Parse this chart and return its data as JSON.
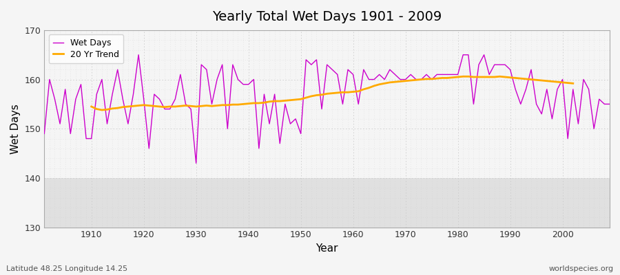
{
  "title": "Yearly Total Wet Days 1901 - 2009",
  "xlabel": "Year",
  "ylabel": "Wet Days",
  "bottom_left_text": "Latitude 48.25 Longitude 14.25",
  "bottom_right_text": "worldspecies.org",
  "legend_labels": [
    "Wet Days",
    "20 Yr Trend"
  ],
  "wet_days_color": "#cc00cc",
  "trend_color": "#ffaa00",
  "plot_bg_color": "#f5f5f5",
  "lower_band_color": "#e0e0e0",
  "fig_bg_color": "#f5f5f5",
  "ylim": [
    130,
    170
  ],
  "xlim": [
    1901,
    2009
  ],
  "lower_band_threshold": 140,
  "years": [
    1901,
    1902,
    1903,
    1904,
    1905,
    1906,
    1907,
    1908,
    1909,
    1910,
    1911,
    1912,
    1913,
    1914,
    1915,
    1916,
    1917,
    1918,
    1919,
    1920,
    1921,
    1922,
    1923,
    1924,
    1925,
    1926,
    1927,
    1928,
    1929,
    1930,
    1931,
    1932,
    1933,
    1934,
    1935,
    1936,
    1937,
    1938,
    1939,
    1940,
    1941,
    1942,
    1943,
    1944,
    1945,
    1946,
    1947,
    1948,
    1949,
    1950,
    1951,
    1952,
    1953,
    1954,
    1955,
    1956,
    1957,
    1958,
    1959,
    1960,
    1961,
    1962,
    1963,
    1964,
    1965,
    1966,
    1967,
    1968,
    1969,
    1970,
    1971,
    1972,
    1973,
    1974,
    1975,
    1976,
    1977,
    1978,
    1979,
    1980,
    1981,
    1982,
    1983,
    1984,
    1985,
    1986,
    1987,
    1988,
    1989,
    1990,
    1991,
    1992,
    1993,
    1994,
    1995,
    1996,
    1997,
    1998,
    1999,
    2000,
    2001,
    2002,
    2003,
    2004,
    2005,
    2006,
    2007,
    2008,
    2009
  ],
  "wet_days": [
    149,
    160,
    156,
    151,
    158,
    149,
    156,
    159,
    148,
    148,
    157,
    160,
    151,
    157,
    162,
    156,
    151,
    157,
    165,
    156,
    146,
    157,
    156,
    154,
    154,
    156,
    161,
    155,
    154,
    143,
    163,
    162,
    155,
    160,
    163,
    150,
    163,
    160,
    159,
    159,
    160,
    146,
    157,
    151,
    157,
    147,
    155,
    151,
    152,
    149,
    164,
    163,
    164,
    154,
    163,
    162,
    161,
    155,
    162,
    161,
    155,
    162,
    160,
    160,
    161,
    160,
    162,
    161,
    160,
    160,
    161,
    160,
    160,
    161,
    160,
    161,
    161,
    161,
    161,
    161,
    165,
    165,
    155,
    163,
    165,
    161,
    163,
    163,
    163,
    162,
    158,
    155,
    158,
    162,
    155,
    153,
    158,
    152,
    158,
    160,
    148,
    158,
    151,
    160,
    158,
    150,
    156,
    155,
    155
  ],
  "trend": [
    null,
    null,
    null,
    null,
    null,
    null,
    null,
    null,
    null,
    154.5,
    154.0,
    153.8,
    153.9,
    154.1,
    154.2,
    154.4,
    154.5,
    154.6,
    154.7,
    154.8,
    154.7,
    154.6,
    154.5,
    154.4,
    154.5,
    154.5,
    154.6,
    154.7,
    154.6,
    154.5,
    154.6,
    154.7,
    154.6,
    154.7,
    154.8,
    154.8,
    154.9,
    154.9,
    155.0,
    155.1,
    155.2,
    155.2,
    155.3,
    155.5,
    155.6,
    155.6,
    155.7,
    155.8,
    155.9,
    156.0,
    156.3,
    156.6,
    156.8,
    156.9,
    157.1,
    157.2,
    157.3,
    157.4,
    157.4,
    157.5,
    157.6,
    158.0,
    158.3,
    158.7,
    159.0,
    159.2,
    159.4,
    159.5,
    159.6,
    159.7,
    159.8,
    159.9,
    160.0,
    160.1,
    160.1,
    160.2,
    160.3,
    160.3,
    160.4,
    160.5,
    160.6,
    160.6,
    160.5,
    160.5,
    160.5,
    160.5,
    160.5,
    160.6,
    160.5,
    160.4,
    160.3,
    160.2,
    160.1,
    160.0,
    159.9,
    159.8,
    159.7,
    159.6,
    159.5,
    159.4,
    159.3,
    159.2,
    null,
    null,
    null,
    null,
    null,
    null,
    null
  ]
}
